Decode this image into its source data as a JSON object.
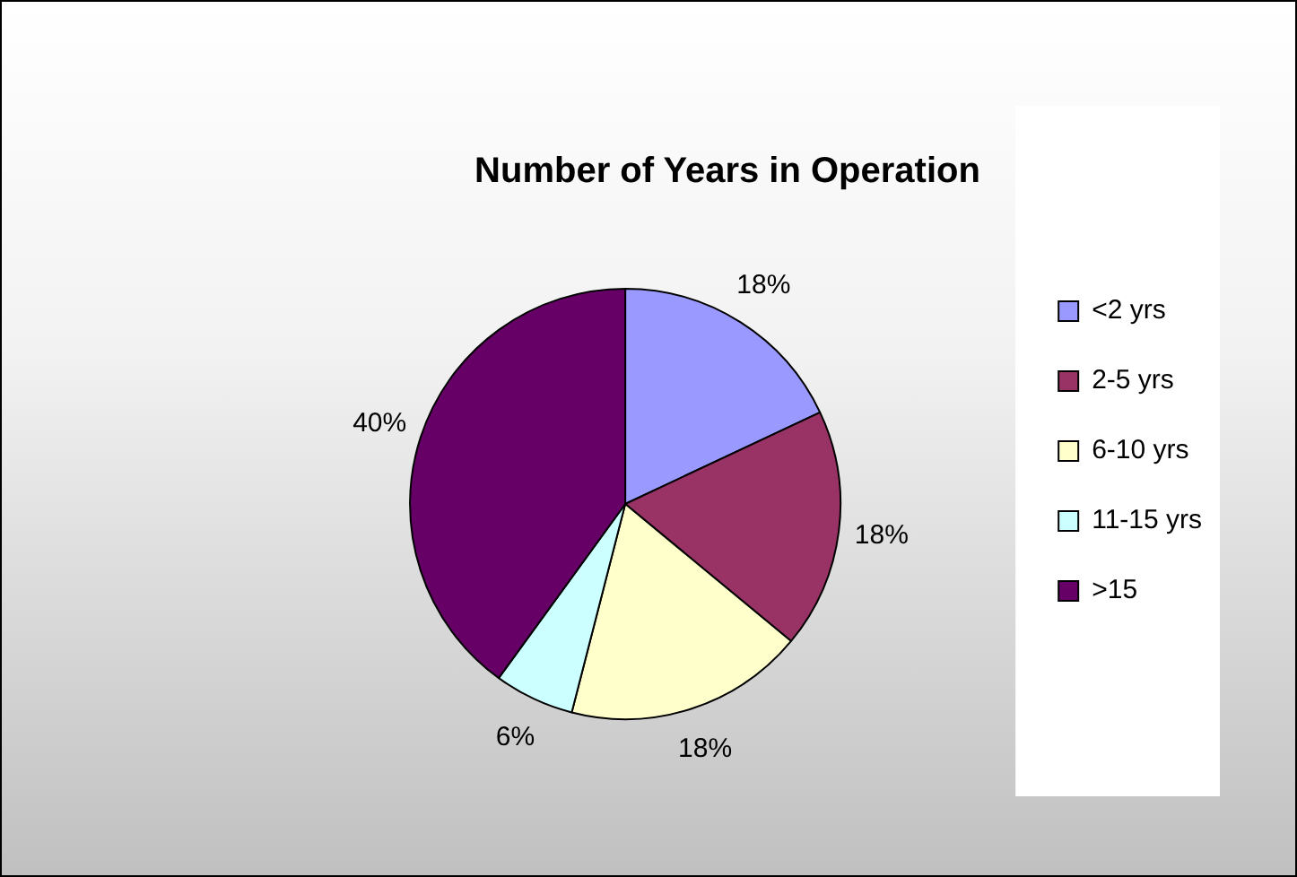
{
  "chart_data": {
    "type": "pie",
    "title": "Number of Years in Operation",
    "categories": [
      "<2 yrs",
      "2-5 yrs",
      "6-10 yrs",
      "11-15 yrs",
      ">15"
    ],
    "values": [
      18,
      18,
      18,
      6,
      40
    ],
    "value_labels": [
      "18%",
      "18%",
      "18%",
      "6%",
      "40%"
    ],
    "colors": [
      "#9999ff",
      "#993366",
      "#ffffcc",
      "#ccffff",
      "#660066"
    ],
    "legend": "right"
  }
}
